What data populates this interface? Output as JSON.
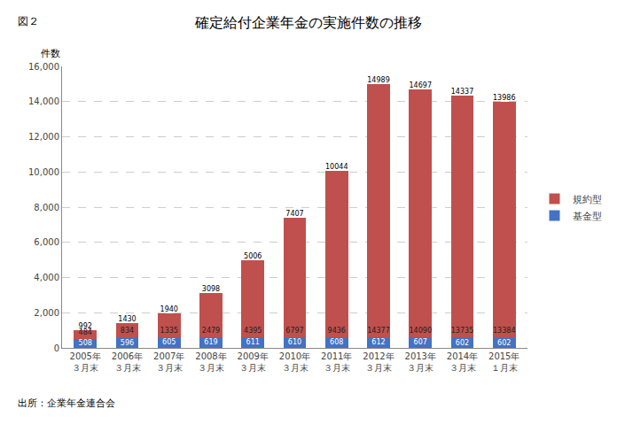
{
  "chart_data": {
    "type": "bar",
    "stacked": true,
    "title": "確定給付企業年金の実施件数の推移",
    "ylabel": "件数",
    "annotations": [
      "図２",
      "出所：企業年金連合会"
    ],
    "categories": [
      "2005年\n３月末",
      "2006年\n３月末",
      "2007年\n３月末",
      "2008年\n３月末",
      "2009年\n３月末",
      "2010年\n３月末",
      "2011年\n３月末",
      "2012年\n３月末",
      "2013年\n３月末",
      "2014年\n３月末",
      "2015年\n１月末"
    ],
    "series": [
      {
        "name": "基金型",
        "color": "#4472C4",
        "values": [
          508,
          596,
          605,
          619,
          611,
          610,
          608,
          612,
          607,
          602,
          602
        ]
      },
      {
        "name": "規約型",
        "color": "#C0504D",
        "values": [
          484,
          834,
          1335,
          2479,
          4395,
          6797,
          9436,
          14377,
          14090,
          13735,
          13384
        ]
      }
    ],
    "totals": [
      992,
      1430,
      1940,
      3098,
      5006,
      7407,
      10044,
      14989,
      14697,
      14337,
      13986
    ],
    "ylim": [
      0,
      16000
    ],
    "yticks": [
      0,
      {
        "value": 2000,
        "label": "2,000"
      },
      {
        "value": 4000,
        "label": "4,000"
      },
      {
        "value": 6000,
        "label": "6,000"
      },
      {
        "value": 8000,
        "label": "8,000"
      },
      {
        "value": 10000,
        "label": "10,000"
      },
      {
        "value": 12000,
        "label": "12,000"
      },
      {
        "value": 14000,
        "label": "14,000"
      },
      {
        "value": 16000,
        "label": "16,000"
      }
    ],
    "grid": true,
    "legend": "right",
    "data_labels": true
  }
}
